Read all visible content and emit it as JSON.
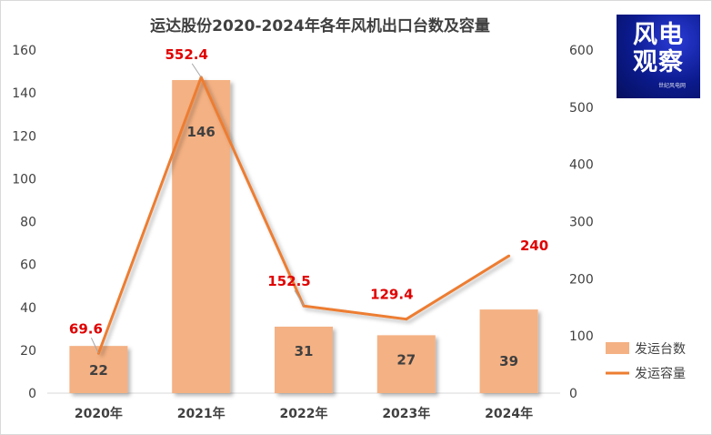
{
  "chart_data": {
    "type": "bar",
    "title": "运达股份2020-2024年各年风机出口台数及容量",
    "categories": [
      "2020年",
      "2021年",
      "2022年",
      "2023年",
      "2024年"
    ],
    "series": [
      {
        "name": "发运台数",
        "type": "bar",
        "axis": "left",
        "values": [
          22,
          146,
          31,
          27,
          39
        ],
        "labels": [
          "22",
          "146",
          "31",
          "27",
          "39"
        ],
        "color": "#f4b183"
      },
      {
        "name": "发运容量",
        "type": "line",
        "axis": "right",
        "values": [
          69.6,
          552.4,
          152.5,
          129.4,
          240
        ],
        "labels": [
          "69.6",
          "552.4",
          "152.5",
          "129.4",
          "240"
        ],
        "color": "#ed7d31",
        "label_color": "#e00000"
      }
    ],
    "y_left": {
      "lim": [
        0,
        160
      ],
      "ticks": [
        "0",
        "20",
        "40",
        "60",
        "80",
        "100",
        "120",
        "140",
        "160"
      ]
    },
    "y_right": {
      "lim": [
        0,
        600
      ],
      "ticks": [
        "0",
        "100",
        "200",
        "300",
        "400",
        "500",
        "600"
      ]
    },
    "grid": false,
    "legend": "right"
  },
  "logo": {
    "line1": "风电",
    "line2": "观察",
    "line3": "世纪风电网"
  }
}
